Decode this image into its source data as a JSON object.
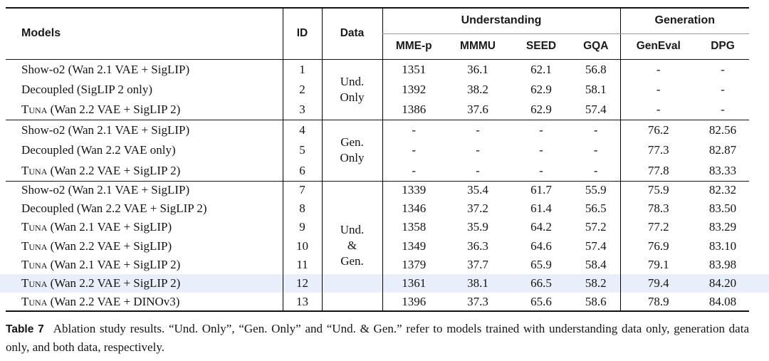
{
  "colors": {
    "highlight_row": "#e9effa",
    "rule_dark": "#111111",
    "rule_light": "#999999"
  },
  "table": {
    "header": {
      "models": "Models",
      "id": "ID",
      "data": "Data",
      "group_understanding": "Understanding",
      "group_generation": "Generation",
      "understanding_cols": [
        "MME-p",
        "MMMU",
        "SEED",
        "GQA"
      ],
      "generation_cols": [
        "GenEval",
        "DPG"
      ]
    },
    "value_col_names": [
      "mme-p",
      "mmmu",
      "seed",
      "gqa",
      "geneval",
      "dpg"
    ],
    "groups": [
      {
        "data_label": "Und.\nOnly",
        "rows": [
          {
            "id": "1",
            "model": {
              "smallcaps": "",
              "text": "Show-o2 (Wan 2.1 VAE + SigLIP)"
            },
            "values": [
              "1351",
              "36.1",
              "62.1",
              "56.8",
              "-",
              "-"
            ],
            "highlight": false
          },
          {
            "id": "2",
            "model": {
              "smallcaps": "",
              "text": "Decoupled (SigLIP 2 only)"
            },
            "values": [
              "1392",
              "38.2",
              "62.9",
              "58.1",
              "-",
              "-"
            ],
            "highlight": false
          },
          {
            "id": "3",
            "model": {
              "smallcaps": "Tuna",
              "text": " (Wan 2.2 VAE + SigLIP 2)"
            },
            "values": [
              "1386",
              "37.6",
              "62.9",
              "57.4",
              "-",
              "-"
            ],
            "highlight": false
          }
        ]
      },
      {
        "data_label": "Gen.\nOnly",
        "rows": [
          {
            "id": "4",
            "model": {
              "smallcaps": "",
              "text": "Show-o2 (Wan 2.1 VAE + SigLIP)"
            },
            "values": [
              "-",
              "-",
              "-",
              "-",
              "76.2",
              "82.56"
            ],
            "highlight": false
          },
          {
            "id": "5",
            "model": {
              "smallcaps": "",
              "text": "Decoupled (Wan 2.2 VAE only)"
            },
            "values": [
              "-",
              "-",
              "-",
              "-",
              "77.3",
              "82.87"
            ],
            "highlight": false
          },
          {
            "id": "6",
            "model": {
              "smallcaps": "Tuna",
              "text": " (Wan 2.2 VAE + SigLIP 2)"
            },
            "values": [
              "-",
              "-",
              "-",
              "-",
              "77.8",
              "83.33"
            ],
            "highlight": false
          }
        ]
      },
      {
        "data_label": "Und.\n&\nGen.",
        "rows": [
          {
            "id": "7",
            "model": {
              "smallcaps": "",
              "text": "Show-o2 (Wan 2.1 VAE + SigLIP)"
            },
            "values": [
              "1339",
              "35.4",
              "61.7",
              "55.9",
              "75.9",
              "82.32"
            ],
            "highlight": false
          },
          {
            "id": "8",
            "model": {
              "smallcaps": "",
              "text": "Decoupled (Wan 2.2 VAE + SigLIP 2)"
            },
            "values": [
              "1346",
              "37.2",
              "61.4",
              "56.5",
              "78.3",
              "83.50"
            ],
            "highlight": false
          },
          {
            "id": "9",
            "model": {
              "smallcaps": "Tuna",
              "text": " (Wan 2.1 VAE + SigLIP)"
            },
            "values": [
              "1358",
              "35.9",
              "64.2",
              "57.2",
              "77.2",
              "83.29"
            ],
            "highlight": false
          },
          {
            "id": "10",
            "model": {
              "smallcaps": "Tuna",
              "text": " (Wan 2.2 VAE + SigLIP)"
            },
            "values": [
              "1349",
              "36.3",
              "64.6",
              "57.4",
              "76.9",
              "83.10"
            ],
            "highlight": false
          },
          {
            "id": "11",
            "model": {
              "smallcaps": "Tuna",
              "text": " (Wan 2.1 VAE + SigLIP 2)"
            },
            "values": [
              "1379",
              "37.7",
              "65.9",
              "58.4",
              "79.1",
              "83.98"
            ],
            "highlight": false
          },
          {
            "id": "12",
            "model": {
              "smallcaps": "Tuna",
              "text": " (Wan 2.2 VAE + SigLIP 2)"
            },
            "values": [
              "1361",
              "38.1",
              "66.5",
              "58.2",
              "79.4",
              "84.20"
            ],
            "highlight": true
          },
          {
            "id": "13",
            "model": {
              "smallcaps": "Tuna",
              "text": " (Wan 2.2 VAE + DINOv3)"
            },
            "values": [
              "1396",
              "37.3",
              "65.6",
              "58.6",
              "78.9",
              "84.08"
            ],
            "highlight": false
          }
        ]
      }
    ]
  },
  "caption": {
    "label": "Table 7",
    "text": "Ablation study results. “Und. Only”, “Gen. Only” and “Und. & Gen.” refer to models trained with understanding data only, generation data only, and both data, respectively."
  }
}
